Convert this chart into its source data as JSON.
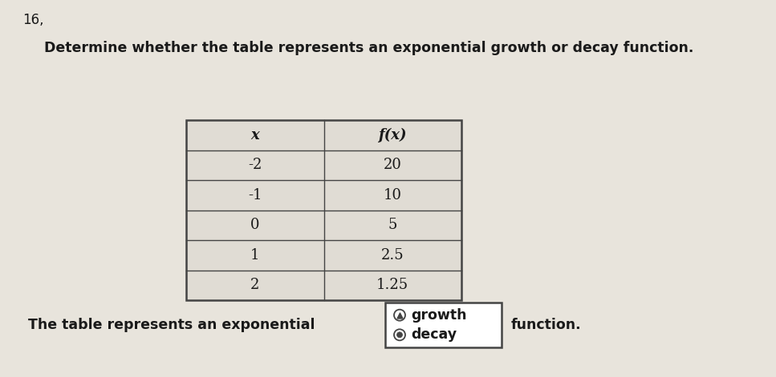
{
  "problem_number": "16,",
  "question": "Determine whether the table represents an exponential growth or decay function.",
  "table_x_header": "x",
  "table_fx_header": "f(x)",
  "table_x_vals": [
    "-2",
    "-1",
    "0",
    "1",
    "2"
  ],
  "table_fx_vals": [
    "20",
    "10",
    "5",
    "2.5",
    "1.25"
  ],
  "answer_text": "The table represents an exponential",
  "answer_choices": [
    "growth",
    "decay"
  ],
  "selected_choice": "decay",
  "end_text": "function.",
  "bg_color": "#e8e4dc",
  "table_bg": "#e0dcd4",
  "table_border_color": "#444444",
  "text_color": "#1a1a1a",
  "font_size_question": 12.5,
  "font_size_table": 12,
  "font_size_answer": 12,
  "font_size_number": 12
}
